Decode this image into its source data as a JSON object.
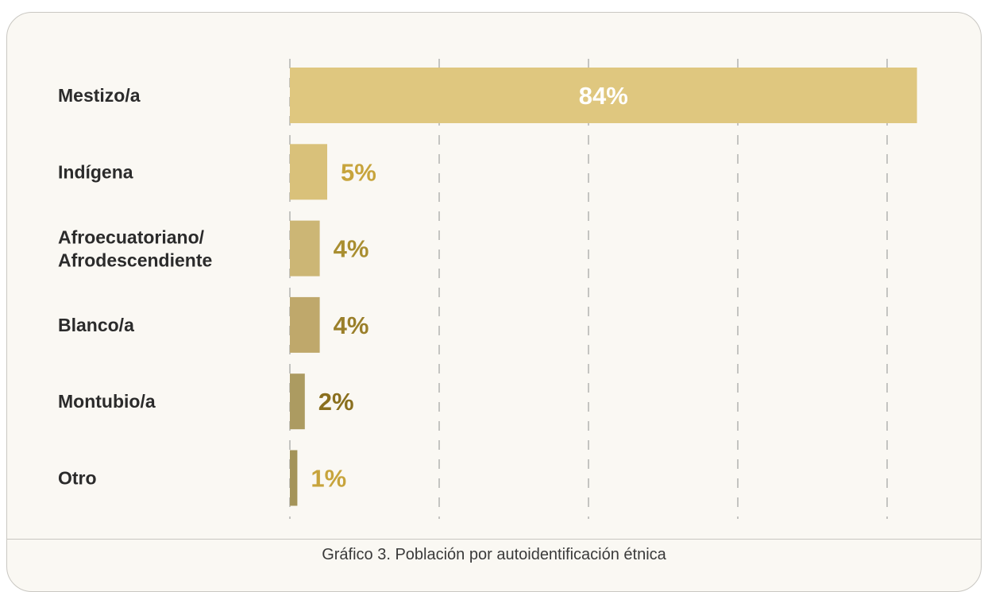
{
  "caption": "Gráfico 3. Población por autoidentificación étnica",
  "chart_data": {
    "type": "bar",
    "orientation": "horizontal",
    "categories": [
      [
        "Mestizo/a"
      ],
      [
        "Indígena"
      ],
      [
        "Afroecuatoriano/",
        "Afrodescendiente"
      ],
      [
        "Blanco/a"
      ],
      [
        "Montubio/a"
      ],
      [
        "Otro"
      ]
    ],
    "values": [
      84,
      5,
      4,
      4,
      2,
      1
    ],
    "value_labels": [
      "84%",
      "5%",
      "4%",
      "4%",
      "2%",
      "1%"
    ],
    "xlim": [
      0,
      100
    ],
    "grid": true,
    "bar_colors": [
      "#dfc77f",
      "#d9c17a",
      "#ccb675",
      "#bfa86b",
      "#ac9b61",
      "#a49459"
    ],
    "label_colors": [
      "#ffffff",
      "#c7a43c",
      "#a98e30",
      "#9a7f2a",
      "#8a6f1e",
      "#c7a43c"
    ]
  }
}
